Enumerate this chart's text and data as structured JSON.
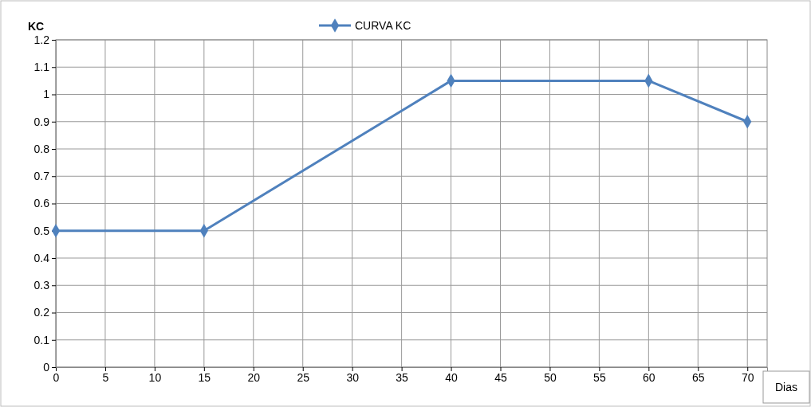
{
  "chart_data": {
    "type": "line",
    "x": [
      0,
      15,
      40,
      60,
      70
    ],
    "series": [
      {
        "name": "CURVA KC",
        "color": "#4f81bd",
        "values": [
          0.5,
          0.5,
          1.05,
          1.05,
          0.9
        ]
      }
    ],
    "xlim": [
      0,
      72
    ],
    "xticks": [
      0,
      5,
      10,
      15,
      20,
      25,
      30,
      35,
      40,
      45,
      50,
      55,
      60,
      65,
      70
    ],
    "ylim": [
      0,
      1.2
    ],
    "yticks": [
      0,
      0.1,
      0.2,
      0.3,
      0.4,
      0.5,
      0.6,
      0.7,
      0.8,
      0.9,
      1,
      1.1,
      1.2
    ],
    "xlabel": "Dias",
    "ylabel": "KC",
    "grid": true,
    "legend": "top",
    "marker": "diamond",
    "line_style": "solid"
  }
}
